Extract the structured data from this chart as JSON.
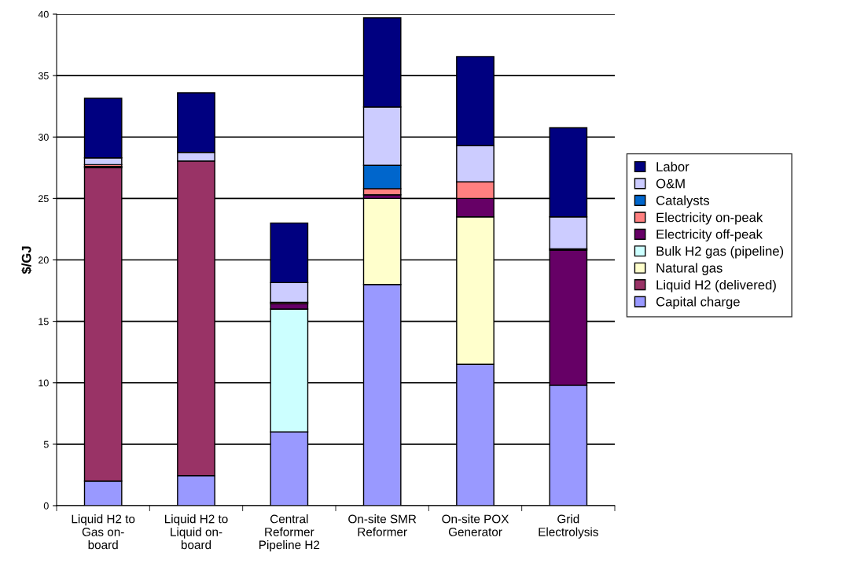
{
  "chart_data": {
    "type": "bar",
    "stacked": true,
    "ylabel": "$/GJ",
    "categories": [
      "Liquid H2 to\nGas on-\nboard",
      "Liquid H2 to\nLiquid on-\nboard",
      "Central\nReformer\nPipeline H2",
      "On-site SMR\nReformer",
      "On-site POX\nGenerator",
      "Grid\nElectrolysis"
    ],
    "series": [
      {
        "name": "Capital charge",
        "color": "#9999ff",
        "values": [
          2.0,
          2.45,
          6.0,
          18.0,
          11.5,
          9.8
        ]
      },
      {
        "name": "Liquid H2 (delivered)",
        "color": "#993366",
        "values": [
          25.5,
          25.6,
          null,
          null,
          null,
          null
        ]
      },
      {
        "name": "Natural gas",
        "color": "#ffffcc",
        "values": [
          null,
          null,
          null,
          7.0,
          12.0,
          null
        ]
      },
      {
        "name": "Bulk H2 gas (pipeline)",
        "color": "#ccffff",
        "values": [
          null,
          null,
          10.0,
          null,
          null,
          null
        ]
      },
      {
        "name": "Electricity off-peak",
        "color": "#660066",
        "values": [
          0.1,
          null,
          0.45,
          0.3,
          1.5,
          11.0
        ]
      },
      {
        "name": "Electricity on-peak",
        "color": "#ff8080",
        "values": [
          0.15,
          null,
          0.1,
          0.5,
          1.35,
          0.1
        ]
      },
      {
        "name": "Catalysts",
        "color": "#0066cc",
        "values": [
          null,
          null,
          null,
          1.9,
          null,
          null
        ]
      },
      {
        "name": "O&M",
        "color": "#ccccff",
        "values": [
          0.55,
          0.7,
          1.6,
          4.75,
          2.95,
          2.6
        ]
      },
      {
        "name": "Labor",
        "color": "#000080",
        "values": [
          4.85,
          4.85,
          4.85,
          7.25,
          7.25,
          7.25
        ]
      }
    ],
    "ylim": [
      0,
      40
    ],
    "yticks": [
      0,
      5,
      10,
      15,
      20,
      25,
      30,
      35,
      40
    ],
    "grid": "y",
    "legend": "right"
  }
}
